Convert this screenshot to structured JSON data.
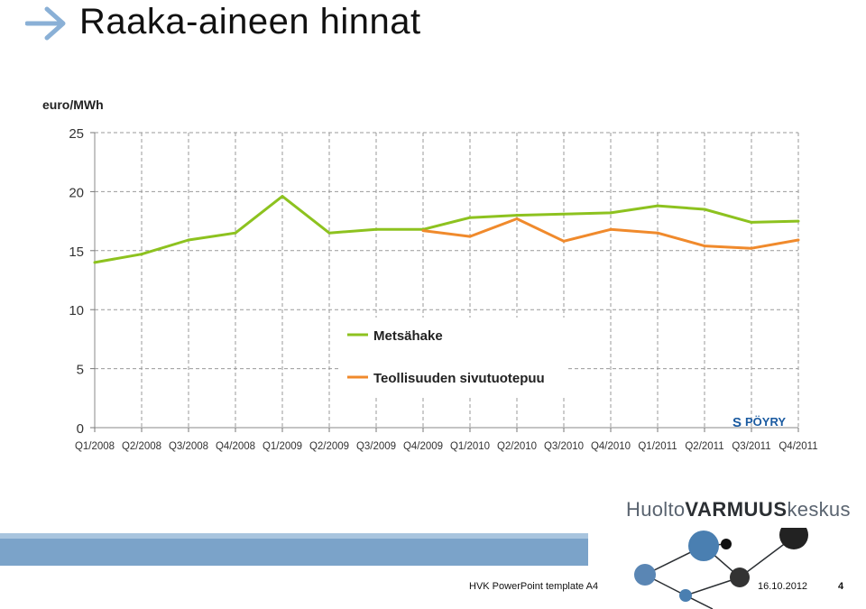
{
  "slide": {
    "title": "Raaka-aineen hinnat"
  },
  "chart_data": {
    "type": "line",
    "title": "",
    "ylabel": "euro/MWh",
    "xlabel": "",
    "ylim": [
      0,
      25
    ],
    "yticks": [
      0,
      5,
      10,
      15,
      20,
      25
    ],
    "grid": true,
    "legend_position": "center",
    "categories": [
      "Q1/2008",
      "Q2/2008",
      "Q3/2008",
      "Q4/2008",
      "Q1/2009",
      "Q2/2009",
      "Q3/2009",
      "Q4/2009",
      "Q1/2010",
      "Q2/2010",
      "Q3/2010",
      "Q4/2010",
      "Q1/2011",
      "Q2/2011",
      "Q3/2011",
      "Q4/2011"
    ],
    "series": [
      {
        "name": "Metsähake",
        "color": "#8dc21f",
        "values": [
          14.0,
          14.7,
          15.9,
          16.5,
          19.6,
          16.5,
          16.8,
          16.8,
          17.8,
          18.0,
          18.1,
          18.2,
          18.8,
          18.5,
          17.4,
          17.5
        ]
      },
      {
        "name": "Teollisuuden sivutuotepuu",
        "color": "#f08a2c",
        "values": [
          null,
          null,
          null,
          null,
          null,
          null,
          null,
          16.7,
          16.2,
          17.7,
          15.8,
          16.8,
          16.5,
          15.4,
          15.2,
          15.9
        ]
      }
    ],
    "watermark": "PÖYRY"
  },
  "footer": {
    "org_logo_part1": "Huolto",
    "org_logo_part2": "VARMUUS",
    "org_logo_part3": "keskus",
    "template": "HVK PowerPoint  template A4",
    "date": "16.10.2012",
    "page": "4"
  }
}
